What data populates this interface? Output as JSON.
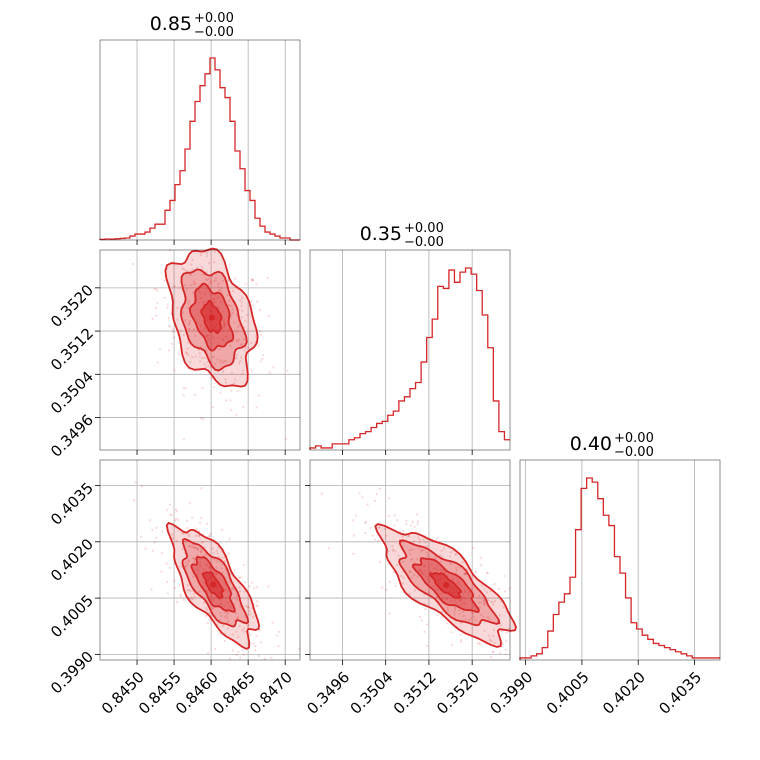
{
  "chart_data": {
    "type": "corner",
    "color": "#d62728",
    "grid": true,
    "titles": [
      {
        "value": "0.85",
        "plus": "+0.00",
        "minus": "−0.00"
      },
      {
        "value": "0.35",
        "plus": "+0.00",
        "minus": "−0.00"
      },
      {
        "value": "0.40",
        "plus": "+0.00",
        "minus": "−0.00"
      }
    ],
    "axes": {
      "p0": {
        "range": [
          0.8445,
          0.8472
        ],
        "ticks": [
          0.845,
          0.8455,
          0.846,
          0.8465,
          0.847
        ],
        "tick_labels": [
          "0.8450",
          "0.8455",
          "0.8460",
          "0.8465",
          "0.8470"
        ]
      },
      "p1": {
        "range": [
          0.349,
          0.3527
        ],
        "ticks": [
          0.3496,
          0.3504,
          0.3512,
          0.352
        ],
        "tick_labels": [
          "0.3496",
          "0.3504",
          "0.3512",
          "0.3520"
        ]
      },
      "p2": {
        "range": [
          0.39885,
          0.40418
        ],
        "ticks": [
          0.399,
          0.4005,
          0.402,
          0.4035
        ],
        "tick_labels": [
          "0.3990",
          "0.4005",
          "0.4020",
          "0.4035"
        ]
      }
    },
    "histograms": {
      "p0": {
        "bin_edges_range": [
          0.8445,
          0.8472
        ],
        "counts": [
          0.3,
          0.5,
          0.4,
          0.6,
          0.8,
          1.0,
          2,
          3,
          3,
          4,
          6,
          8,
          8,
          15,
          20,
          28,
          35,
          46,
          60,
          70,
          78,
          84,
          92,
          86,
          77,
          72,
          60,
          45,
          36,
          25,
          20,
          11,
          7,
          4,
          3,
          2,
          1,
          1,
          0,
          0
        ]
      },
      "p1": {
        "bin_edges_range": [
          0.349,
          0.3527
        ],
        "counts": [
          1,
          2,
          1,
          1,
          3,
          3,
          3,
          5,
          6,
          8,
          9,
          11,
          13,
          14,
          17,
          19,
          24,
          26,
          30,
          33,
          43,
          55,
          64,
          80,
          79,
          88,
          82,
          87,
          89,
          86,
          78,
          66,
          50,
          24,
          9,
          5
        ]
      },
      "p2": {
        "bin_edges_range": [
          0.39885,
          0.40418
        ],
        "counts": [
          1,
          1,
          2,
          3,
          6,
          14,
          22,
          28,
          32,
          40,
          63,
          83,
          88,
          86,
          78,
          70,
          65,
          50,
          42,
          30,
          18,
          15,
          12,
          10,
          8,
          7,
          6,
          5,
          4,
          3,
          2,
          1,
          1,
          1,
          1,
          1
        ]
      }
    },
    "contours": {
      "p0_p1": {
        "center": [
          0.84601,
          0.35145
        ],
        "sigma_x": 0.00023,
        "sigma_y": 0.0005,
        "rho": -0.35
      },
      "p0_p2": {
        "center": [
          0.84603,
          0.40086
        ],
        "sigma_x": 0.00023,
        "sigma_y": 0.00062,
        "rho": -0.72
      },
      "p1_p2": {
        "center": [
          0.35152,
          0.40085
        ],
        "sigma_x": 0.00048,
        "sigma_y": 0.0006,
        "rho": -0.76
      }
    }
  }
}
